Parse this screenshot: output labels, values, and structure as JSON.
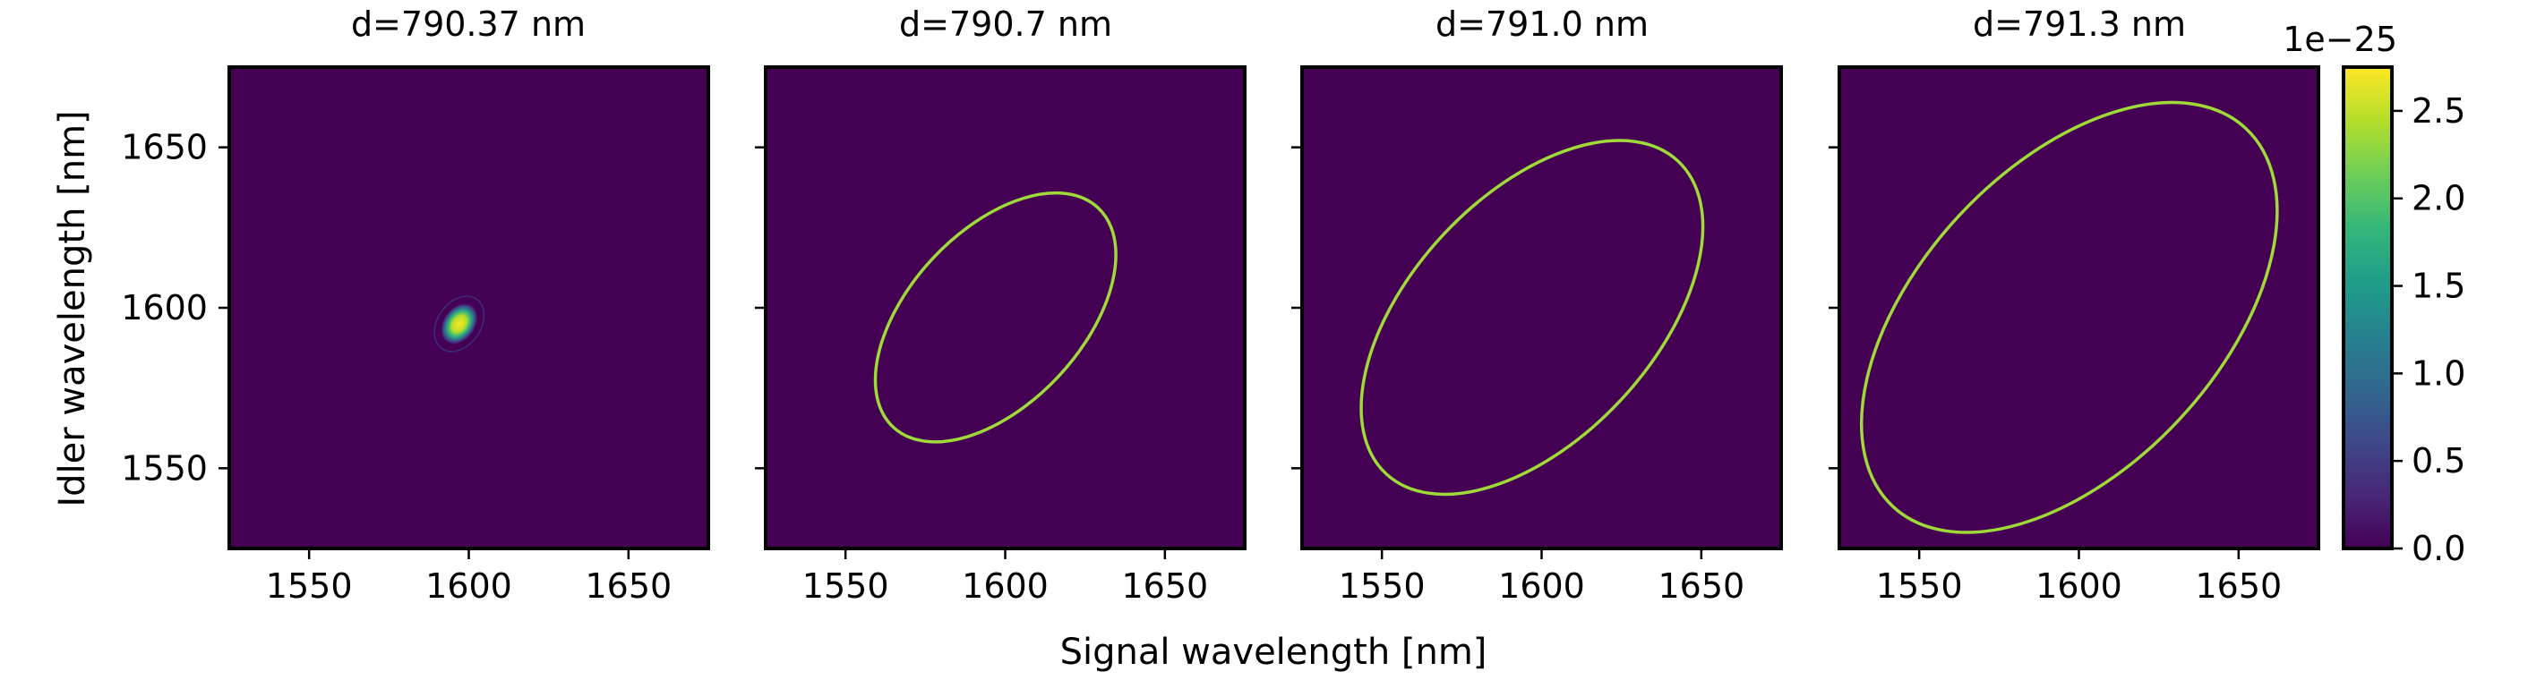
{
  "chart_data": {
    "type": "heatmap",
    "xlabel": "Signal wavelength [nm]",
    "ylabel": "Idler wavelength [nm]",
    "xlim": [
      1525,
      1675
    ],
    "ylim": [
      1525,
      1675
    ],
    "xticks": [
      1550,
      1600,
      1650
    ],
    "yticks": [
      1550,
      1600,
      1650
    ],
    "xtick_labels": [
      "1550",
      "1600",
      "1650"
    ],
    "ytick_labels": [
      "1550",
      "1600",
      "1650"
    ],
    "colormap": "viridis",
    "background_color": "#440154",
    "ring_color": "#a0da39",
    "colorbar": {
      "min": 0.0,
      "max": 2.75,
      "ticks": [
        0.0,
        0.5,
        1.0,
        1.5,
        2.0,
        2.5
      ],
      "tick_labels": [
        "0.0",
        "0.5",
        "1.0",
        "1.5",
        "2.0",
        "2.5"
      ],
      "exponent_label": "1e−25",
      "stops": [
        "#440154",
        "#482878",
        "#3e4989",
        "#31688e",
        "#26828e",
        "#1f9e89",
        "#35b779",
        "#6ece58",
        "#b5de2b",
        "#fde725"
      ]
    },
    "panels": [
      {
        "title": "d=790.37 nm",
        "kind": "spot",
        "center": [
          1597,
          1595
        ],
        "semi_major": 7,
        "semi_minor": 5,
        "angle_deg": -55
      },
      {
        "title": "d=790.7 nm",
        "kind": "ring",
        "center": [
          1597,
          1597
        ],
        "semi_major": 47,
        "semi_minor": 27,
        "angle_deg": -47
      },
      {
        "title": "d=791.0 nm",
        "kind": "ring",
        "center": [
          1597,
          1597
        ],
        "semi_major": 67,
        "semi_minor": 38,
        "angle_deg": -47
      },
      {
        "title": "d=791.3 nm",
        "kind": "ring",
        "center": [
          1597,
          1597
        ],
        "semi_major": 81,
        "semi_minor": 47,
        "angle_deg": -47
      }
    ]
  }
}
